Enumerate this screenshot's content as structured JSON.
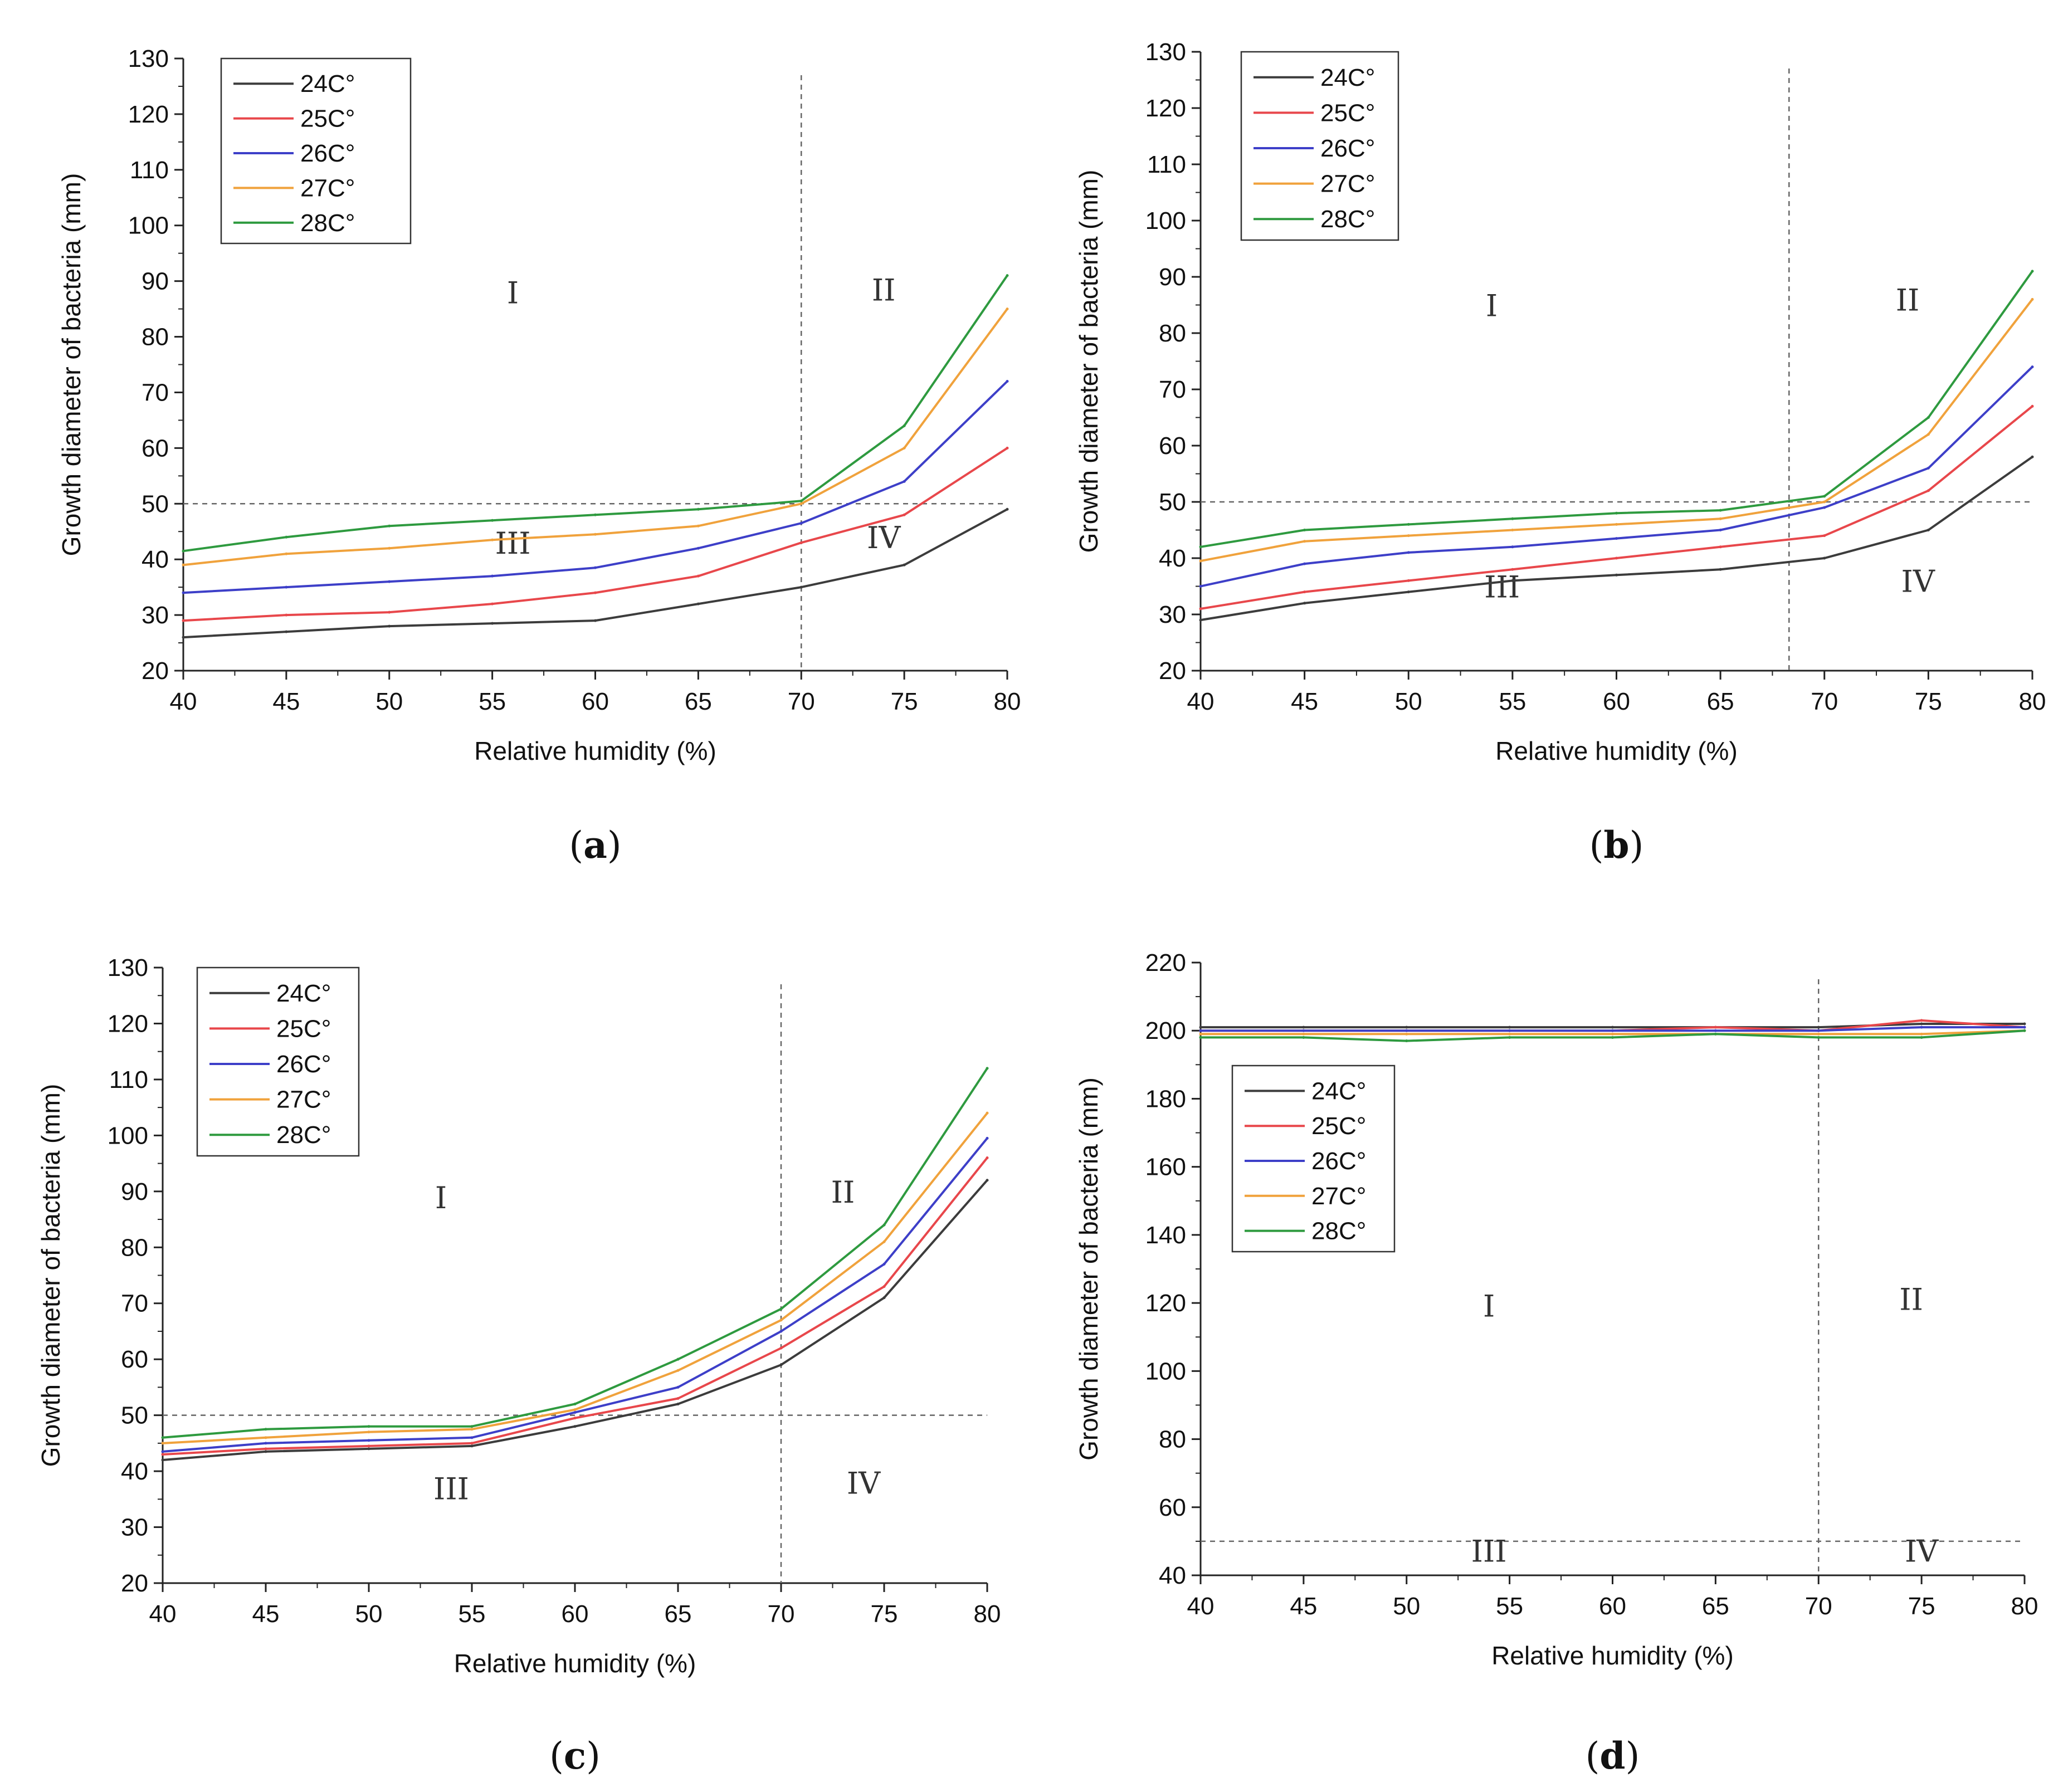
{
  "chart_data": [
    {
      "type": "line",
      "caption": "a",
      "xlabel": "Relative humidity (%)",
      "ylabel": "Growth diameter of bacteria (mm)",
      "xlim": [
        40,
        80
      ],
      "ylim": [
        20,
        130
      ],
      "xticks": [
        40,
        45,
        50,
        55,
        60,
        65,
        70,
        75,
        80
      ],
      "yticks": [
        20,
        30,
        40,
        50,
        60,
        70,
        80,
        90,
        100,
        110,
        120,
        130
      ],
      "x": [
        40,
        45,
        50,
        55,
        60,
        65,
        70,
        75,
        80
      ],
      "series": [
        {
          "name": "24C°",
          "color": "#3c3c3c",
          "values": [
            26,
            27,
            28,
            28.5,
            29,
            32,
            35,
            39,
            49
          ]
        },
        {
          "name": "25C°",
          "color": "#e8474b",
          "values": [
            29,
            30,
            30.5,
            32,
            34,
            37,
            43,
            48,
            60
          ]
        },
        {
          "name": "26C°",
          "color": "#3d3fc8",
          "values": [
            34,
            35,
            36,
            37,
            38.5,
            42,
            46.5,
            54,
            72
          ]
        },
        {
          "name": "27C°",
          "color": "#f0a23c",
          "values": [
            39,
            41,
            42,
            43.5,
            44.5,
            46,
            50,
            60,
            85
          ]
        },
        {
          "name": "28C°",
          "color": "#2e9a3f",
          "values": [
            41.5,
            44,
            46,
            47,
            48,
            49,
            50.5,
            64,
            91
          ]
        }
      ],
      "reference_lines": {
        "hline_y": 50,
        "vline_x": 70
      },
      "regions": [
        {
          "label": "I",
          "x": 56,
          "y": 86
        },
        {
          "label": "II",
          "x": 74,
          "y": 86.5
        },
        {
          "label": "III",
          "x": 56,
          "y": 41
        },
        {
          "label": "IV",
          "x": 74,
          "y": 42
        }
      ],
      "legend_position": "top-left"
    },
    {
      "type": "line",
      "caption": "b",
      "xlabel": "Relative humidity (%)",
      "ylabel": "Growth diameter of bacteria (mm)",
      "xlim": [
        40,
        80
      ],
      "ylim": [
        20,
        130
      ],
      "xticks": [
        40,
        45,
        50,
        55,
        60,
        65,
        70,
        75,
        80
      ],
      "yticks": [
        20,
        30,
        40,
        50,
        60,
        70,
        80,
        90,
        100,
        110,
        120,
        130
      ],
      "x": [
        40,
        45,
        50,
        55,
        60,
        65,
        70,
        75,
        80
      ],
      "series": [
        {
          "name": "24C°",
          "color": "#3c3c3c",
          "values": [
            29,
            32,
            34,
            36,
            37,
            38,
            40,
            45,
            58
          ]
        },
        {
          "name": "25C°",
          "color": "#e8474b",
          "values": [
            31,
            34,
            36,
            38,
            40,
            42,
            44,
            52,
            67
          ]
        },
        {
          "name": "26C°",
          "color": "#3d3fc8",
          "values": [
            35,
            39,
            41,
            42,
            43.5,
            45,
            49,
            56,
            74
          ]
        },
        {
          "name": "27C°",
          "color": "#f0a23c",
          "values": [
            39.5,
            43,
            44,
            45,
            46,
            47,
            50,
            62,
            86
          ]
        },
        {
          "name": "28C°",
          "color": "#2e9a3f",
          "values": [
            42,
            45,
            46,
            47,
            48,
            48.5,
            51,
            65,
            91
          ]
        }
      ],
      "reference_lines": {
        "hline_y": 50,
        "vline_x": 68.3
      },
      "regions": [
        {
          "label": "I",
          "x": 54,
          "y": 83
        },
        {
          "label": "II",
          "x": 74,
          "y": 84
        },
        {
          "label": "III",
          "x": 54.5,
          "y": 33
        },
        {
          "label": "IV",
          "x": 74.5,
          "y": 34
        }
      ],
      "legend_position": "top-left"
    },
    {
      "type": "line",
      "caption": "c",
      "xlabel": "Relative humidity (%)",
      "ylabel": "Growth diameter of bacteria (mm)",
      "xlim": [
        40,
        80
      ],
      "ylim": [
        20,
        130
      ],
      "xticks": [
        40,
        45,
        50,
        55,
        60,
        65,
        70,
        75,
        80
      ],
      "yticks": [
        20,
        30,
        40,
        50,
        60,
        70,
        80,
        90,
        100,
        110,
        120,
        130
      ],
      "x": [
        40,
        45,
        50,
        55,
        60,
        65,
        70,
        75,
        80
      ],
      "series": [
        {
          "name": "24C°",
          "color": "#3c3c3c",
          "values": [
            42,
            43.5,
            44,
            44.5,
            48,
            52,
            59,
            71,
            92
          ]
        },
        {
          "name": "25C°",
          "color": "#e8474b",
          "values": [
            43,
            44,
            44.5,
            45,
            49.5,
            53,
            62,
            73,
            96
          ]
        },
        {
          "name": "26C°",
          "color": "#3d3fc8",
          "values": [
            43.5,
            45,
            45.5,
            46,
            50.5,
            55,
            65,
            77,
            99.5
          ]
        },
        {
          "name": "27C°",
          "color": "#f0a23c",
          "values": [
            45,
            46,
            47,
            47.5,
            51,
            58,
            67,
            81,
            104
          ]
        },
        {
          "name": "28C°",
          "color": "#2e9a3f",
          "values": [
            46,
            47.5,
            48,
            48,
            52,
            60,
            69,
            84,
            112
          ]
        }
      ],
      "reference_lines": {
        "hline_y": 50,
        "vline_x": 70
      },
      "regions": [
        {
          "label": "I",
          "x": 53.5,
          "y": 87
        },
        {
          "label": "II",
          "x": 73,
          "y": 88
        },
        {
          "label": "III",
          "x": 54,
          "y": 35
        },
        {
          "label": "IV",
          "x": 74,
          "y": 36
        }
      ],
      "legend_position": "top-left"
    },
    {
      "type": "line",
      "caption": "d",
      "xlabel": "Relative humidity (%)",
      "ylabel": "Growth diameter of bacteria (mm)",
      "xlim": [
        40,
        80
      ],
      "ylim": [
        40,
        220
      ],
      "xticks": [
        40,
        45,
        50,
        55,
        60,
        65,
        70,
        75,
        80
      ],
      "yticks": [
        40,
        60,
        80,
        100,
        120,
        140,
        160,
        180,
        200,
        220
      ],
      "x": [
        40,
        45,
        50,
        55,
        60,
        65,
        70,
        75,
        80
      ],
      "series": [
        {
          "name": "24C°",
          "color": "#3c3c3c",
          "values": [
            201,
            201,
            201,
            201,
            201,
            201,
            201,
            202,
            202
          ]
        },
        {
          "name": "25C°",
          "color": "#e8474b",
          "values": [
            200,
            200,
            200,
            200,
            200,
            201,
            200,
            203,
            201
          ]
        },
        {
          "name": "26C°",
          "color": "#3d3fc8",
          "values": [
            200,
            200,
            200,
            200,
            200,
            200,
            200,
            201,
            201
          ]
        },
        {
          "name": "27C°",
          "color": "#f0a23c",
          "values": [
            199,
            199,
            199,
            199,
            199,
            199,
            199,
            199,
            200
          ]
        },
        {
          "name": "28C°",
          "color": "#2e9a3f",
          "values": [
            198,
            198,
            197,
            198,
            198,
            199,
            198,
            198,
            200
          ]
        }
      ],
      "reference_lines": {
        "hline_y": 50,
        "vline_x": 70
      },
      "regions": [
        {
          "label": "I",
          "x": 54,
          "y": 116
        },
        {
          "label": "II",
          "x": 74.5,
          "y": 118
        },
        {
          "label": "III",
          "x": 54,
          "y": 44
        },
        {
          "label": "IV",
          "x": 75,
          "y": 44
        }
      ],
      "legend_position": "center-left"
    }
  ]
}
